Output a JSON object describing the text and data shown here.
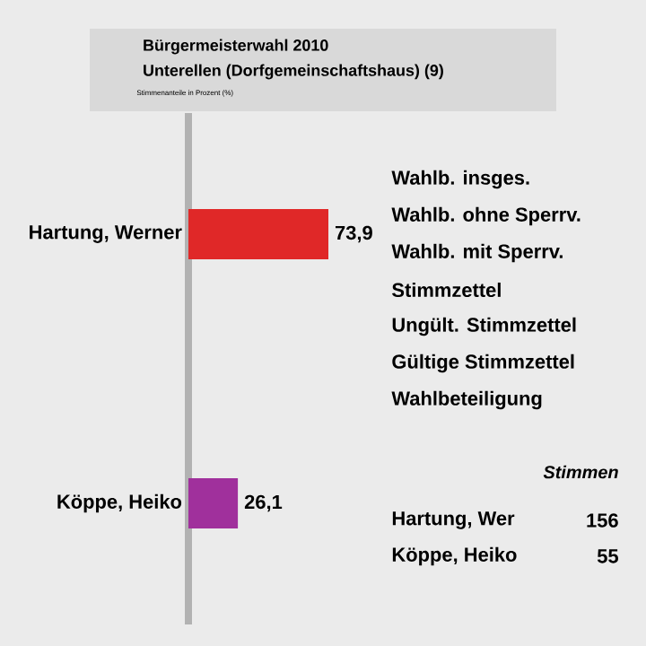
{
  "chart_data": {
    "type": "bar",
    "orientation": "horizontal",
    "title": "Bürgermeisterwahl 2010",
    "subtitle": "Unterellen (Dorfgemeinschaftshaus) (9)",
    "categories": [
      "Hartung, Werner",
      "Köppe, Heiko"
    ],
    "values": [
      73.9,
      26.1
    ],
    "colors": [
      "#e02828",
      "#a0309c"
    ],
    "value_labels": [
      "73,9",
      "26,1"
    ],
    "tick_labels": "y",
    "annotations": [
      "Stimmenanteile in Prozent (%)",
      "Wahlb. insges.",
      "Wahlb. ohne Sperrv.",
      "Wahlb. mit Sperrv.",
      "Stimmzettel",
      "Ungült. Stimmzettel",
      "Gültige Stimmzettel",
      "Wahlbeteiligung",
      "Stimmen",
      "Hartung, Wer",
      "156",
      "Köppe, Heiko",
      "55"
    ]
  }
}
